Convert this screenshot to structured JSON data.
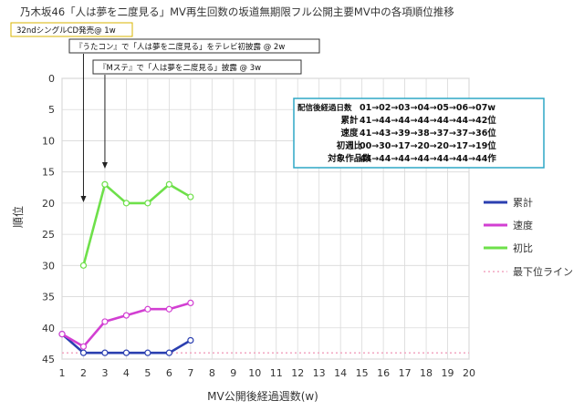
{
  "chart_data": {
    "type": "line",
    "title": "乃木坂46「人は夢を二度見る」MV再生回数の坂道無期限フル公開主要MV中の各項順位推移",
    "xlabel": "MV公開後経過週数(w)",
    "ylabel": "順位",
    "xlim": [
      1,
      20
    ],
    "ylim": [
      45,
      0
    ],
    "y_inverted": true,
    "xticks": [
      "1",
      "2",
      "3",
      "4",
      "5",
      "6",
      "7",
      "8",
      "9",
      "10",
      "11",
      "12",
      "13",
      "14",
      "15",
      "16",
      "17",
      "18",
      "19",
      "20"
    ],
    "yticks": [
      "0",
      "5",
      "10",
      "15",
      "20",
      "25",
      "30",
      "35",
      "40",
      "45"
    ],
    "grid": true,
    "legend_position": "right",
    "series": [
      {
        "name": "累計",
        "color": "#2b3fb0",
        "x": [
          1,
          2,
          3,
          4,
          5,
          6,
          7
        ],
        "y": [
          41,
          44,
          44,
          44,
          44,
          44,
          42
        ]
      },
      {
        "name": "速度",
        "color": "#d23fd2",
        "x": [
          1,
          2,
          3,
          4,
          5,
          6,
          7
        ],
        "y": [
          41,
          43,
          39,
          38,
          37,
          37,
          36
        ]
      },
      {
        "name": "初比",
        "color": "#6ee04a",
        "x": [
          2,
          3,
          4,
          5,
          6,
          7
        ],
        "y": [
          30,
          17,
          20,
          20,
          17,
          19
        ]
      },
      {
        "name": "最下位ライン",
        "color": "#f2a6c0",
        "dashed": true,
        "x": [
          1,
          20
        ],
        "y": [
          44,
          44
        ]
      }
    ],
    "annotations": [
      {
        "text": "32ndシングルCD発売@ 1w",
        "x": 1
      },
      {
        "text": "『うたコン』で「人は夢を二度見る」をテレビ初披露 @ 2w",
        "x": 2
      },
      {
        "text": "『Mステ』で「人は夢を二度見る」披露 @ 3w",
        "x": 3
      }
    ],
    "table": {
      "rows": [
        {
          "label": "配信後経過日数",
          "value": "01→02→03→04→05→06→07w"
        },
        {
          "label": "累計",
          "value": "41→44→44→44→44→44→42位"
        },
        {
          "label": "速度",
          "value": "41→43→39→38→37→37→36位"
        },
        {
          "label": "初週比",
          "value": "00→30→17→20→20→17→19位"
        },
        {
          "label": "対象作品数",
          "value": "44→44→44→44→44→44→44作"
        }
      ]
    }
  }
}
